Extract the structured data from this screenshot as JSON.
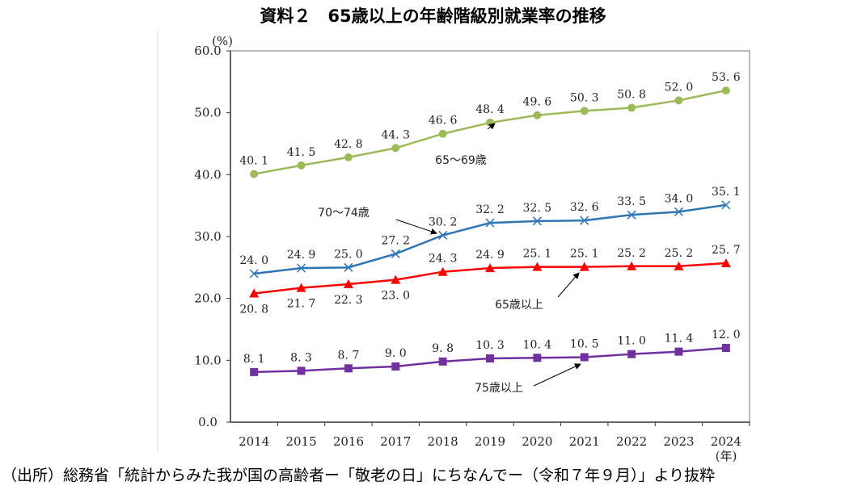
{
  "title": "資料２　65歳以上の年齢階級別就業率の推移",
  "source": "（出所）総務省「統計からみた我が国の高齢者ー「敬老の日」にちなんでー（令和７年９月）」より抜粋",
  "chart_data": {
    "type": "line",
    "title": "資料２　65歳以上の年齢階級別就業率の推移",
    "x_unit": "(年)",
    "y_unit": "(%)",
    "categories": [
      "2014",
      "2015",
      "2016",
      "2017",
      "2018",
      "2019",
      "2020",
      "2021",
      "2022",
      "2023",
      "2024"
    ],
    "ylim": [
      0,
      60
    ],
    "yticks": [
      "0.0",
      "10.0",
      "20.0",
      "30.0",
      "40.0",
      "50.0",
      "60.0"
    ],
    "grid": false,
    "series": [
      {
        "name": "65〜69歳",
        "color": "#9BBB59",
        "marker": "circle",
        "values": [
          40.1,
          41.5,
          42.8,
          44.3,
          46.6,
          48.4,
          49.6,
          50.3,
          50.8,
          52.0,
          53.6
        ]
      },
      {
        "name": "70〜74歳",
        "color": "#2E75B6",
        "marker": "x",
        "values": [
          24.0,
          24.9,
          25.0,
          27.2,
          30.2,
          32.2,
          32.5,
          32.6,
          33.5,
          34.0,
          35.1
        ]
      },
      {
        "name": "65歳以上",
        "color": "#FF0000",
        "marker": "triangle",
        "values": [
          20.8,
          21.7,
          22.3,
          23.0,
          24.3,
          24.9,
          25.1,
          25.1,
          25.2,
          25.2,
          25.7
        ]
      },
      {
        "name": "75歳以上",
        "color": "#7030A0",
        "marker": "square",
        "values": [
          8.1,
          8.3,
          8.7,
          9.0,
          9.8,
          10.3,
          10.4,
          10.5,
          11.0,
          11.4,
          12.0
        ]
      }
    ]
  }
}
